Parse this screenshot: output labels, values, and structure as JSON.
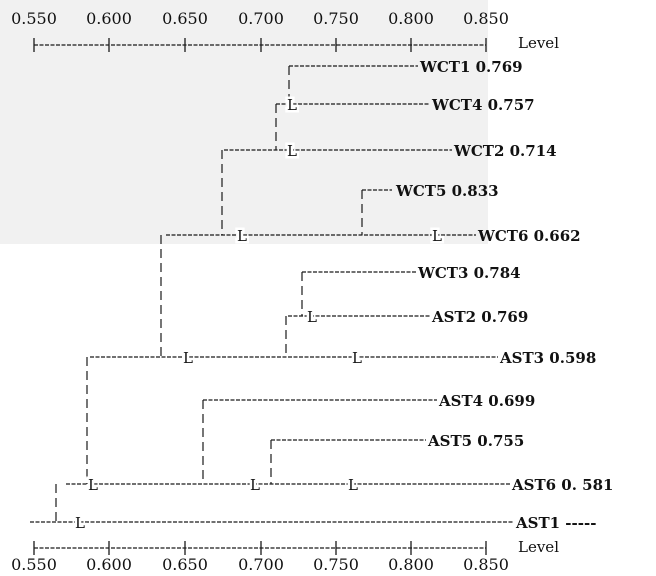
{
  "top_axis": {
    "ticks": [
      "0.550",
      "0.600",
      "0.650",
      "0.700",
      "0.750",
      "0.800",
      "0.850"
    ],
    "level_label": "Level"
  },
  "bottom_axis": {
    "ticks": [
      "0.550",
      "0.600",
      "0.650",
      "0.700",
      "0.750",
      "0.800",
      "0.850"
    ],
    "level_label": "Level"
  },
  "node_marker": "L",
  "leaves": [
    {
      "id": "WCT1",
      "label": "WCT1 0.769",
      "level": 0.769
    },
    {
      "id": "WCT4",
      "label": "WCT4  0.757",
      "level": 0.757
    },
    {
      "id": "WCT2",
      "label": "WCT2  0.714",
      "level": 0.714
    },
    {
      "id": "WCT5",
      "label": "WCT5  0.833",
      "level": 0.833
    },
    {
      "id": "WCT6",
      "label": "WCT6  0.662",
      "level": 0.662
    },
    {
      "id": "WCT3",
      "label": "WCT3  0.784",
      "level": 0.784
    },
    {
      "id": "AST2",
      "label": "AST2  0.769",
      "level": 0.769
    },
    {
      "id": "AST3",
      "label": "AST3  0.598",
      "level": 0.598
    },
    {
      "id": "AST4",
      "label": "AST4  0.699",
      "level": 0.699
    },
    {
      "id": "AST5",
      "label": "AST5  0.755",
      "level": 0.755
    },
    {
      "id": "AST6",
      "label": "AST6  0. 581",
      "level": 0.581
    },
    {
      "id": "AST1",
      "label": "AST1  -----",
      "level": null
    }
  ]
}
